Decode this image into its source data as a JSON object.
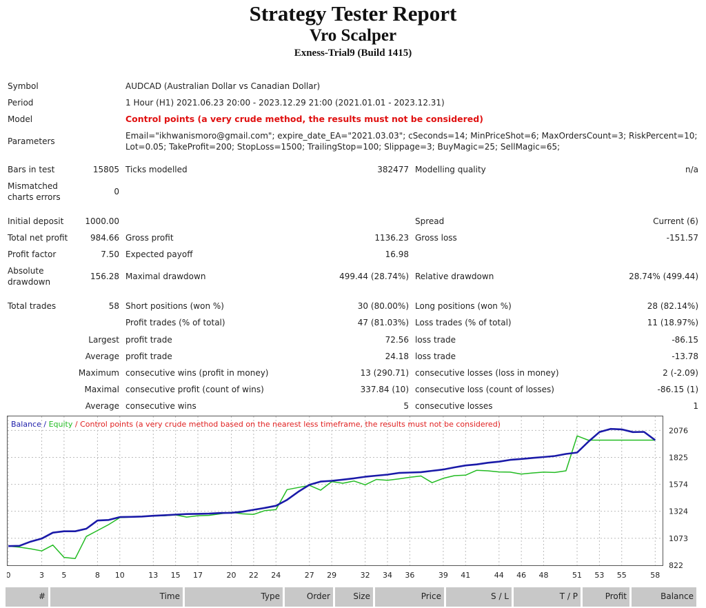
{
  "header": {
    "title": "Strategy Tester Report",
    "ea_name": "Vro Scalper",
    "account": "Exness-Trial9 (Build 1415)"
  },
  "info": {
    "symbol_label": "Symbol",
    "symbol_value": "AUDCAD (Australian Dollar vs Canadian Dollar)",
    "period_label": "Period",
    "period_value": "1 Hour (H1) 2021.06.23 20:00 - 2023.12.29 21:00 (2021.01.01 - 2023.12.31)",
    "model_label": "Model",
    "model_value": "Control points (a very crude method, the results must not be considered)",
    "parameters_label": "Parameters",
    "parameters_line1": "Email=\"ikhwanismoro@gmail.com\"; expire_date_EA=\"2021.03.03\"; cSeconds=14; MinPriceShot=6; MaxOrdersCount=3; RiskPercent=10;",
    "parameters_line2": "Lot=0.05; TakeProfit=200; StopLoss=1500; TrailingStop=100; Slippage=3; BuyMagic=25; SellMagic=65;"
  },
  "stats": {
    "bars_label": "Bars in test",
    "bars_value": "15805",
    "ticks_label": "Ticks modelled",
    "ticks_value": "382477",
    "quality_label": "Modelling quality",
    "quality_value": "n/a",
    "mismatch_label1": "Mismatched",
    "mismatch_label2": "charts errors",
    "mismatch_value": "0",
    "deposit_label": "Initial deposit",
    "deposit_value": "1000.00",
    "spread_label": "Spread",
    "spread_value": "Current (6)",
    "netprofit_label": "Total net profit",
    "netprofit_value": "984.66",
    "grossprofit_label": "Gross profit",
    "grossprofit_value": "1136.23",
    "grossloss_label": "Gross loss",
    "grossloss_value": "-151.57",
    "pf_label": "Profit factor",
    "pf_value": "7.50",
    "payoff_label": "Expected payoff",
    "payoff_value": "16.98",
    "absdd_label1": "Absolute",
    "absdd_label2": "drawdown",
    "absdd_value": "156.28",
    "maxdd_label": "Maximal drawdown",
    "maxdd_value": "499.44 (28.74%)",
    "reldd_label": "Relative drawdown",
    "reldd_value": "28.74% (499.44)",
    "trades_label": "Total trades",
    "trades_value": "58",
    "short_label": "Short positions (won %)",
    "short_value": "30 (80.00%)",
    "long_label": "Long positions (won %)",
    "long_value": "28 (82.14%)",
    "ptrades_label": "Profit trades (% of total)",
    "ptrades_value": "47 (81.03%)",
    "ltrades_label": "Loss trades (% of total)",
    "ltrades_value": "11 (18.97%)",
    "largest_label": "Largest",
    "lpt_label": "profit trade",
    "lpt_value": "72.56",
    "llt_label": "loss trade",
    "llt_value": "-86.15",
    "average_label": "Average",
    "apt_label": "profit trade",
    "apt_value": "24.18",
    "alt_label": "loss trade",
    "alt_value": "-13.78",
    "maximum_label": "Maximum",
    "mcw_label": "consecutive wins (profit in money)",
    "mcw_value": "13 (290.71)",
    "mcl_label": "consecutive losses (loss in money)",
    "mcl_value": "2 (-2.09)",
    "maximal_label": "Maximal",
    "mcp_label": "consecutive profit (count of wins)",
    "mcp_value": "337.84 (10)",
    "mcloss_label": "consecutive loss (count of losses)",
    "mcloss_value": "-86.15 (1)",
    "average2_label": "Average",
    "acw_label": "consecutive wins",
    "acw_value": "5",
    "acl_label": "consecutive losses",
    "acl_value": "1"
  },
  "chart_data": {
    "type": "line",
    "legend_balance": "Balance",
    "legend_sep": " / ",
    "legend_equity": "Equity",
    "legend_note": " / Control points (a very crude method based on the nearest less timeframe, the results must not be considered)",
    "colors": {
      "balance": "#1a1aa8",
      "equity": "#22bb22",
      "note": "#e02020",
      "grid": "#bbbbbb"
    },
    "xlim": [
      0,
      58.6
    ],
    "ylim": [
      822,
      2200
    ],
    "x_ticks": [
      0,
      3,
      5,
      8,
      10,
      13,
      15,
      17,
      20,
      22,
      24,
      27,
      29,
      32,
      34,
      36,
      39,
      41,
      44,
      46,
      48,
      51,
      53,
      55,
      58
    ],
    "y_ticks": [
      822,
      1073,
      1324,
      1574,
      1825,
      2076
    ],
    "series": [
      {
        "name": "Balance",
        "points": [
          [
            0,
            1000
          ],
          [
            1,
            1003
          ],
          [
            2,
            1042
          ],
          [
            3,
            1070
          ],
          [
            4,
            1125
          ],
          [
            5,
            1138
          ],
          [
            6,
            1138
          ],
          [
            7,
            1162
          ],
          [
            8,
            1238
          ],
          [
            9,
            1243
          ],
          [
            10,
            1270
          ],
          [
            11,
            1272
          ],
          [
            12,
            1275
          ],
          [
            13,
            1282
          ],
          [
            14,
            1287
          ],
          [
            15,
            1293
          ],
          [
            16,
            1298
          ],
          [
            17,
            1300
          ],
          [
            18,
            1302
          ],
          [
            19,
            1308
          ],
          [
            20,
            1310
          ],
          [
            21,
            1320
          ],
          [
            22,
            1338
          ],
          [
            23,
            1355
          ],
          [
            24,
            1375
          ],
          [
            25,
            1430
          ],
          [
            26,
            1505
          ],
          [
            27,
            1570
          ],
          [
            28,
            1600
          ],
          [
            29,
            1607
          ],
          [
            30,
            1618
          ],
          [
            31,
            1630
          ],
          [
            32,
            1645
          ],
          [
            33,
            1655
          ],
          [
            34,
            1665
          ],
          [
            35,
            1680
          ],
          [
            36,
            1684
          ],
          [
            37,
            1688
          ],
          [
            38,
            1700
          ],
          [
            39,
            1712
          ],
          [
            40,
            1732
          ],
          [
            41,
            1750
          ],
          [
            42,
            1760
          ],
          [
            43,
            1775
          ],
          [
            44,
            1785
          ],
          [
            45,
            1802
          ],
          [
            46,
            1810
          ],
          [
            47,
            1820
          ],
          [
            48,
            1828
          ],
          [
            49,
            1838
          ],
          [
            50,
            1857
          ],
          [
            51,
            1870
          ],
          [
            52,
            1970
          ],
          [
            53,
            2060
          ],
          [
            54,
            2090
          ],
          [
            55,
            2085
          ],
          [
            56,
            2060
          ],
          [
            57,
            2062
          ],
          [
            58,
            1985
          ]
        ]
      },
      {
        "name": "Equity",
        "points": [
          [
            0,
            1000
          ],
          [
            1,
            990
          ],
          [
            2,
            975
          ],
          [
            3,
            955
          ],
          [
            4,
            1010
          ],
          [
            5,
            895
          ],
          [
            6,
            885
          ],
          [
            7,
            1090
          ],
          [
            8,
            1145
          ],
          [
            9,
            1200
          ],
          [
            10,
            1265
          ],
          [
            11,
            1270
          ],
          [
            12,
            1275
          ],
          [
            13,
            1280
          ],
          [
            14,
            1283
          ],
          [
            15,
            1290
          ],
          [
            16,
            1270
          ],
          [
            17,
            1283
          ],
          [
            18,
            1286
          ],
          [
            19,
            1300
          ],
          [
            20,
            1315
          ],
          [
            21,
            1300
          ],
          [
            22,
            1295
          ],
          [
            23,
            1330
          ],
          [
            24,
            1340
          ],
          [
            25,
            1525
          ],
          [
            26,
            1545
          ],
          [
            27,
            1565
          ],
          [
            28,
            1520
          ],
          [
            29,
            1600
          ],
          [
            30,
            1585
          ],
          [
            31,
            1605
          ],
          [
            32,
            1570
          ],
          [
            33,
            1620
          ],
          [
            34,
            1612
          ],
          [
            35,
            1625
          ],
          [
            36,
            1640
          ],
          [
            37,
            1652
          ],
          [
            38,
            1590
          ],
          [
            39,
            1630
          ],
          [
            40,
            1655
          ],
          [
            41,
            1660
          ],
          [
            42,
            1705
          ],
          [
            43,
            1700
          ],
          [
            44,
            1690
          ],
          [
            45,
            1688
          ],
          [
            46,
            1670
          ],
          [
            47,
            1680
          ],
          [
            48,
            1688
          ],
          [
            49,
            1685
          ],
          [
            50,
            1700
          ],
          [
            51,
            2025
          ],
          [
            52,
            1985
          ],
          [
            53,
            1985
          ],
          [
            54,
            1985
          ],
          [
            55,
            1985
          ],
          [
            56,
            1985
          ],
          [
            57,
            1985
          ],
          [
            58,
            1985
          ]
        ]
      }
    ]
  },
  "table_header": {
    "columns": [
      "#",
      "Time",
      "Type",
      "Order",
      "Size",
      "Price",
      "S / L",
      "T / P",
      "Profit",
      "Balance"
    ]
  }
}
